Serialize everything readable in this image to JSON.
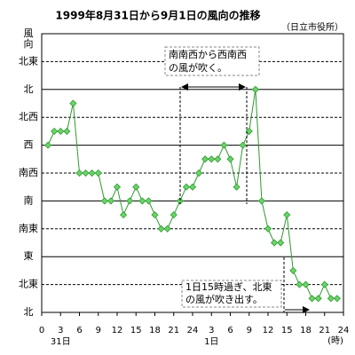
{
  "chart_data": {
    "type": "line",
    "title": "1999年8月31日から9月1日の風向の推移",
    "subtitle": "（日立市役所）",
    "ylabel": [
      "風",
      "向"
    ],
    "xunit": "(時)",
    "x": [
      1,
      2,
      3,
      4,
      5,
      6,
      7,
      8,
      9,
      10,
      11,
      12,
      13,
      14,
      15,
      16,
      17,
      18,
      19,
      20,
      21,
      22,
      23,
      24,
      25,
      26,
      27,
      28,
      29,
      30,
      31,
      32,
      33,
      34,
      35,
      36,
      37,
      38,
      39,
      40,
      41,
      42,
      43,
      44,
      45,
      46,
      47
    ],
    "series": [
      {
        "color": "#2e9a2e",
        "marker_color": "#6ad46a",
        "values": [
          6,
          6.5,
          6.5,
          6.5,
          7.5,
          5,
          5,
          5,
          5,
          4,
          4,
          4.5,
          3.5,
          4,
          4.5,
          4,
          4,
          3.5,
          3,
          3,
          3.5,
          4,
          4.5,
          4.5,
          5,
          5.5,
          5.5,
          5.5,
          6,
          5.5,
          4.5,
          6,
          6.5,
          8,
          4,
          3,
          2.5,
          2.5,
          3.5,
          1.5,
          1,
          1,
          0.5,
          0.5,
          1,
          0.5,
          0.5
        ]
      }
    ],
    "xlim": [
      0,
      48
    ],
    "xticks": [
      0,
      3,
      6,
      9,
      12,
      15,
      18,
      21,
      24,
      {
        "value": 27,
        "label": "3"
      },
      {
        "value": 30,
        "label": "6"
      },
      {
        "value": 33,
        "label": "9"
      },
      {
        "value": 36,
        "label": "12"
      },
      {
        "value": 39,
        "label": "15"
      },
      {
        "value": 42,
        "label": "18"
      },
      {
        "value": 45,
        "label": "21"
      },
      {
        "value": 48,
        "label": "24"
      }
    ],
    "date_labels": [
      {
        "value": 3,
        "label": "31日"
      },
      {
        "value": 27,
        "label": "1日"
      }
    ],
    "ylim": [
      0,
      10
    ],
    "yticks": [
      {
        "value": 0,
        "label": "北"
      },
      {
        "value": 1,
        "label": "北東"
      },
      {
        "value": 2,
        "label": "東"
      },
      {
        "value": 3,
        "label": "南東"
      },
      {
        "value": 4,
        "label": "南"
      },
      {
        "value": 5,
        "label": "南西"
      },
      {
        "value": 6,
        "label": "西"
      },
      {
        "value": 7,
        "label": "北西"
      },
      {
        "value": 8,
        "label": "北"
      },
      {
        "value": 9,
        "label": "北東"
      }
    ],
    "grid": true,
    "annotations": [
      {
        "lines": [
          "南南西から西南西",
          "の風が吹く。"
        ]
      },
      {
        "lines": [
          "1日15時過ぎ、北東",
          "の風が吹き出す。"
        ]
      }
    ]
  }
}
